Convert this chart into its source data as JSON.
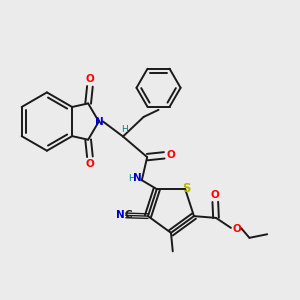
{
  "background_color": "#ebebeb",
  "bond_color": "#1a1a1a",
  "colors": {
    "N": "#0000cc",
    "O": "#ff0000",
    "S": "#b8b800",
    "H": "#008080",
    "CN_N": "#0000cc",
    "CN_C": "#1a1a1a"
  },
  "lw": 1.4,
  "lw_thin": 1.0,
  "font_size": 7.5
}
